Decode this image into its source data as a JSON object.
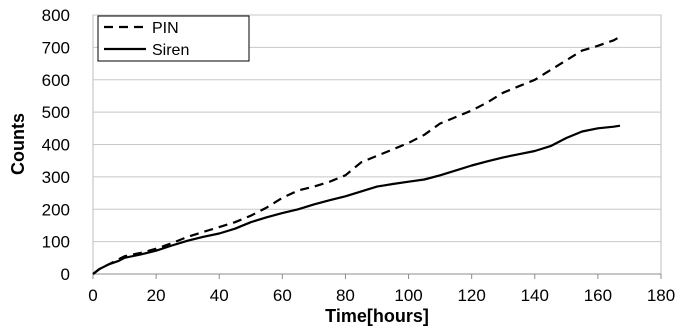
{
  "chart_data": {
    "type": "line",
    "xlabel": "Time[hours]",
    "ylabel": "Counts",
    "xlim": [
      0,
      180
    ],
    "ylim": [
      0,
      800
    ],
    "xticks": [
      0,
      20,
      40,
      60,
      80,
      100,
      120,
      140,
      160,
      180
    ],
    "yticks": [
      0,
      100,
      200,
      300,
      400,
      500,
      600,
      700,
      800
    ],
    "grid": "horizontal",
    "legend_position": "top-left",
    "series": [
      {
        "name": "PIN",
        "style": "dashed",
        "color": "#000000",
        "x": [
          0,
          2,
          5,
          8,
          10,
          15,
          20,
          25,
          30,
          35,
          40,
          45,
          50,
          55,
          60,
          65,
          70,
          75,
          80,
          85,
          90,
          95,
          100,
          105,
          110,
          115,
          120,
          125,
          130,
          135,
          140,
          145,
          150,
          155,
          160,
          165,
          167
        ],
        "y": [
          0,
          15,
          30,
          45,
          55,
          65,
          78,
          95,
          115,
          130,
          145,
          160,
          180,
          205,
          235,
          258,
          270,
          285,
          305,
          345,
          365,
          385,
          405,
          430,
          465,
          485,
          505,
          530,
          560,
          580,
          600,
          630,
          660,
          690,
          705,
          722,
          733
        ]
      },
      {
        "name": "Siren",
        "style": "solid",
        "color": "#000000",
        "x": [
          0,
          2,
          5,
          8,
          10,
          15,
          20,
          25,
          30,
          35,
          40,
          45,
          50,
          55,
          60,
          65,
          70,
          75,
          80,
          85,
          90,
          95,
          100,
          105,
          110,
          115,
          120,
          125,
          130,
          135,
          140,
          145,
          150,
          155,
          160,
          165,
          167
        ],
        "y": [
          0,
          15,
          30,
          40,
          50,
          60,
          72,
          88,
          103,
          115,
          125,
          140,
          160,
          175,
          188,
          200,
          215,
          228,
          240,
          255,
          270,
          278,
          285,
          292,
          305,
          320,
          335,
          348,
          360,
          370,
          380,
          395,
          420,
          440,
          450,
          455,
          458
        ]
      }
    ]
  }
}
